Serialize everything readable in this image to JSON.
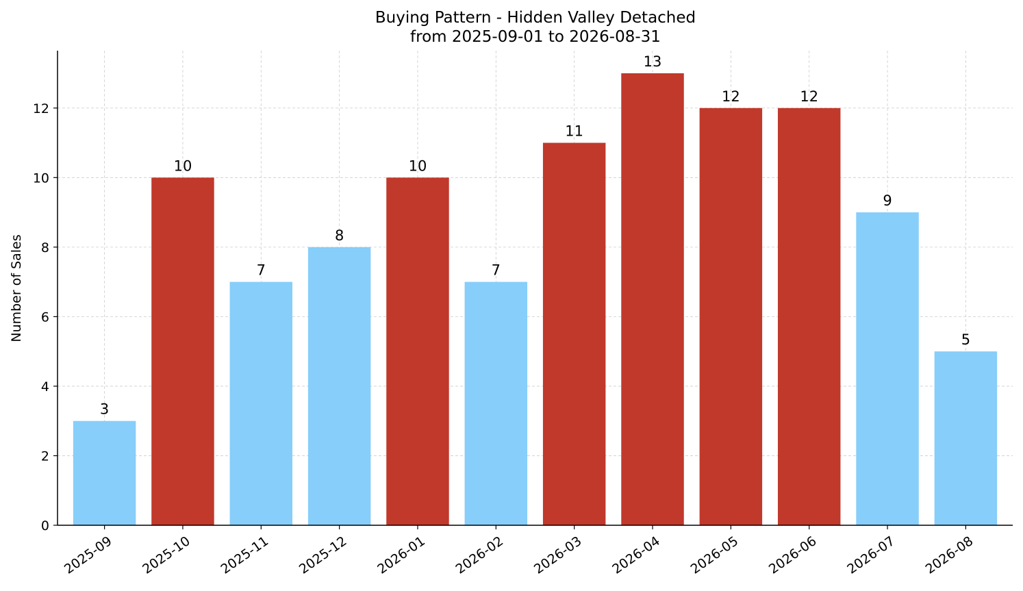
{
  "chart_data": {
    "type": "bar",
    "title": "Buying Pattern - Hidden Valley Detached",
    "subtitle": "from 2025-09-01 to 2026-08-31",
    "xlabel": "",
    "ylabel": "Number of Sales",
    "ylim": [
      0,
      13.65
    ],
    "yticks": [
      0,
      2,
      4,
      6,
      8,
      10,
      12
    ],
    "grid": true,
    "categories": [
      "2025-09",
      "2025-10",
      "2025-11",
      "2025-12",
      "2026-01",
      "2026-02",
      "2026-03",
      "2026-04",
      "2026-05",
      "2026-06",
      "2026-07",
      "2026-08"
    ],
    "values": [
      3,
      10,
      7,
      8,
      10,
      7,
      11,
      13,
      12,
      12,
      9,
      5
    ],
    "bar_colors": [
      "#87CEFA",
      "#C0392B",
      "#87CEFA",
      "#87CEFA",
      "#C0392B",
      "#87CEFA",
      "#C0392B",
      "#C0392B",
      "#C0392B",
      "#C0392B",
      "#87CEFA",
      "#87CEFA"
    ],
    "colors": {
      "high": "#C0392B",
      "low": "#87CEFA"
    }
  }
}
